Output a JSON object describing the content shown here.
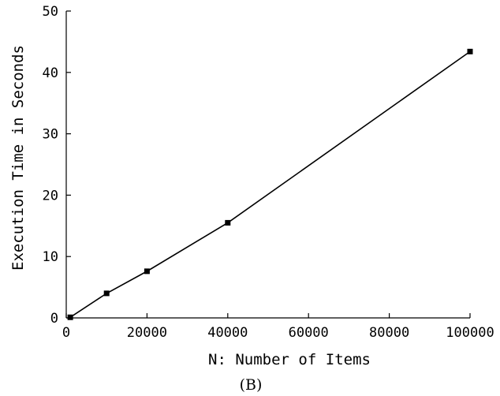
{
  "chart_data": {
    "type": "line",
    "xlabel": "N: Number of Items",
    "ylabel": "Execution Time in Seconds",
    "xlim": [
      0,
      100000
    ],
    "ylim": [
      0,
      50
    ],
    "xticks": [
      0,
      20000,
      40000,
      60000,
      80000,
      100000
    ],
    "xtick_labels": [
      "0",
      "20000",
      "40000",
      "60000",
      "80000",
      "100000"
    ],
    "yticks": [
      0,
      10,
      20,
      30,
      40,
      50
    ],
    "ytick_labels": [
      "0",
      "10",
      "20",
      "30",
      "40",
      "50"
    ],
    "grid": false,
    "series": [
      {
        "marker": "square",
        "color": "#000000",
        "points": [
          {
            "x": 1000,
            "y": 0.1
          },
          {
            "x": 10000,
            "y": 4.0
          },
          {
            "x": 20000,
            "y": 7.6
          },
          {
            "x": 40000,
            "y": 15.5
          },
          {
            "x": 100000,
            "y": 43.4
          }
        ]
      }
    ]
  },
  "caption": "(B)"
}
